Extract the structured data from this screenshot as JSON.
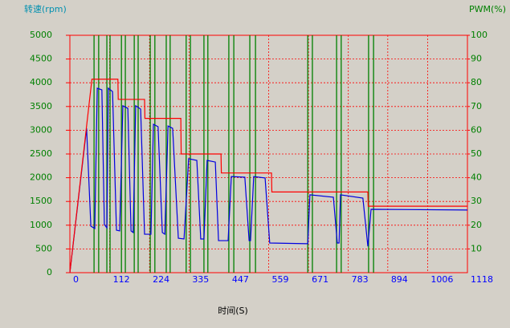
{
  "chart_data": {
    "type": "line",
    "y_title": "转速(rpm)",
    "y2_title": "PWM(%)",
    "x_title": "时间(S)",
    "xlim": [
      0,
      1118
    ],
    "xticks": [
      0,
      112,
      224,
      335,
      447,
      559,
      671,
      783,
      894,
      1006,
      1118
    ],
    "ylim": [
      0,
      5000
    ],
    "yticks": [
      0,
      500,
      1000,
      1500,
      2000,
      2500,
      3000,
      3500,
      4000,
      4500,
      5000
    ],
    "y2lim": [
      0,
      100
    ],
    "y2ticks": [
      10,
      20,
      30,
      40,
      50,
      60,
      70,
      80,
      90,
      100
    ],
    "grid": true,
    "series": [
      {
        "color": "#0000e0",
        "axis": "y",
        "x": [
          0,
          47,
          59,
          70,
          77,
          90,
          97,
          104,
          108,
          120,
          131,
          140,
          149,
          163,
          172,
          178,
          185,
          199,
          210,
          228,
          235,
          248,
          260,
          267,
          276,
          289,
          305,
          321,
          334,
          357,
          368,
          377,
          386,
          409,
          418,
          445,
          454,
          492,
          504,
          508,
          517,
          549,
          562,
          669,
          675,
          741,
          752,
          757,
          761,
          824,
          838,
          847,
          1118
        ],
        "values": [
          0,
          3040,
          980,
          930,
          3885,
          3850,
          1015,
          945,
          3885,
          3815,
          895,
          880,
          3515,
          3460,
          880,
          845,
          3515,
          3445,
          810,
          810,
          3125,
          3075,
          845,
          810,
          3090,
          3040,
          725,
          710,
          2400,
          2365,
          710,
          710,
          2365,
          2330,
          675,
          675,
          2025,
          2010,
          675,
          675,
          2025,
          1995,
          625,
          610,
          1640,
          1590,
          625,
          625,
          1640,
          1570,
          555,
          1335,
          1320
        ]
      },
      {
        "color": "#ff0000",
        "axis": "y2",
        "x": [
          0,
          62,
          135,
          136,
          210,
          211,
          312,
          313,
          425,
          426,
          567,
          568,
          838,
          839,
          1118
        ],
        "values": [
          0,
          81.5,
          81.5,
          73,
          73,
          65,
          65,
          50,
          50,
          42,
          42,
          34,
          34,
          28,
          28
        ]
      }
    ],
    "markers": {
      "color": "#008000",
      "x": [
        68,
        81,
        104,
        113,
        145,
        156,
        181,
        192,
        226,
        239,
        271,
        282,
        327,
        339,
        377,
        388,
        447,
        461,
        506,
        522,
        669,
        682,
        750,
        763,
        840,
        854
      ]
    }
  }
}
